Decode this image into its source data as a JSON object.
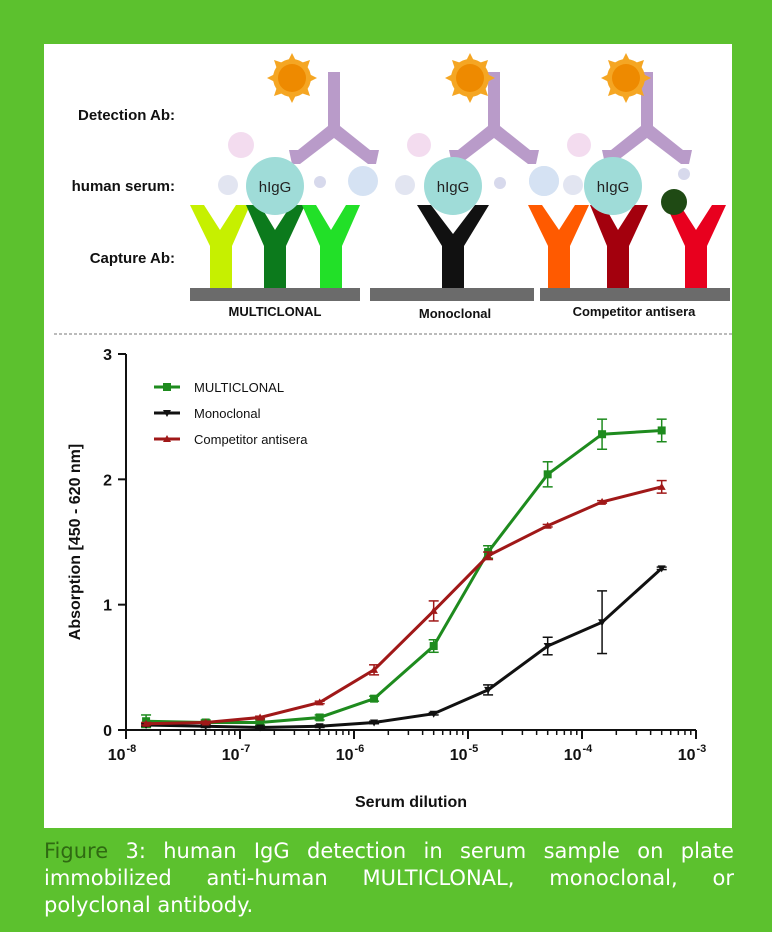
{
  "colors": {
    "background": "#5cc12e",
    "multiclonal": "#1e8b1e",
    "monoclonal": "#111111",
    "competitor": "#a01818",
    "detection_ab": "#b99bc9",
    "higg": "#9fdcd8",
    "sun": "#f5a623",
    "surface": "#6b6b6b"
  },
  "diagram": {
    "row_labels": [
      "Detection Ab:",
      "human serum:",
      "Capture Ab:"
    ],
    "higg_label": "hIgG",
    "panels": [
      "MULTICLONAL",
      "Monoclonal",
      "Competitor antisera"
    ],
    "icons": [
      "sun-icon",
      "antibody-icon",
      "serum-particle-icon",
      "surface-icon"
    ],
    "capture_colors": {
      "multiclonal": [
        "#c6f000",
        "#0c7a1c",
        "#22e028"
      ],
      "monoclonal": [
        "#111111"
      ],
      "competitor": [
        "#ff5a00",
        "#a3000d",
        "#e8001e"
      ]
    }
  },
  "chart_data": {
    "type": "line",
    "xlabel": "Serum dilution",
    "ylabel": "Absorption [450 - 620 nm]",
    "x_scale": "log",
    "xlim": [
      1e-08,
      0.001
    ],
    "ylim": [
      0,
      3
    ],
    "x_ticks": [
      {
        "base": "10",
        "exp": "-8"
      },
      {
        "base": "10",
        "exp": "-7"
      },
      {
        "base": "10",
        "exp": "-6"
      },
      {
        "base": "10",
        "exp": "-5"
      },
      {
        "base": "10",
        "exp": "-4"
      },
      {
        "base": "10",
        "exp": "-3"
      }
    ],
    "y_ticks": [
      "0",
      "1",
      "2",
      "3"
    ],
    "legend_position": "top-left",
    "grid": false,
    "x": [
      1.5e-08,
      5e-08,
      1.5e-07,
      5e-07,
      1.5e-06,
      5e-06,
      1.5e-05,
      5e-05,
      0.00015,
      0.0005
    ],
    "series": [
      {
        "name": "MULTICLONAL",
        "marker": "square",
        "values": [
          0.07,
          0.06,
          0.06,
          0.1,
          0.25,
          0.67,
          1.42,
          2.04,
          2.36,
          2.39
        ],
        "errors": [
          0.05,
          0.02,
          0.02,
          0.02,
          0.02,
          0.05,
          0.05,
          0.1,
          0.12,
          0.09
        ]
      },
      {
        "name": "Monoclonal",
        "marker": "triangle-down",
        "values": [
          0.04,
          0.03,
          0.02,
          0.03,
          0.06,
          0.13,
          0.32,
          0.67,
          0.86,
          1.29
        ],
        "errors": [
          0.01,
          0.01,
          0.01,
          0.01,
          0.01,
          0.01,
          0.04,
          0.07,
          0.25,
          0.01
        ]
      },
      {
        "name": "Competitor antisera",
        "marker": "triangle-up",
        "values": [
          0.05,
          0.06,
          0.1,
          0.22,
          0.48,
          0.95,
          1.39,
          1.63,
          1.82,
          1.94
        ],
        "errors": [
          0.01,
          0.01,
          0.01,
          0.01,
          0.04,
          0.08,
          0.03,
          0.01,
          0.01,
          0.05
        ]
      }
    ]
  },
  "caption": {
    "figure_label": "Figure",
    "figure_number": "3:",
    "text": " human IgG detection in serum sample on plate immobilized anti-human MULTICLONAL, monoclonal, or polyclonal antibody."
  }
}
